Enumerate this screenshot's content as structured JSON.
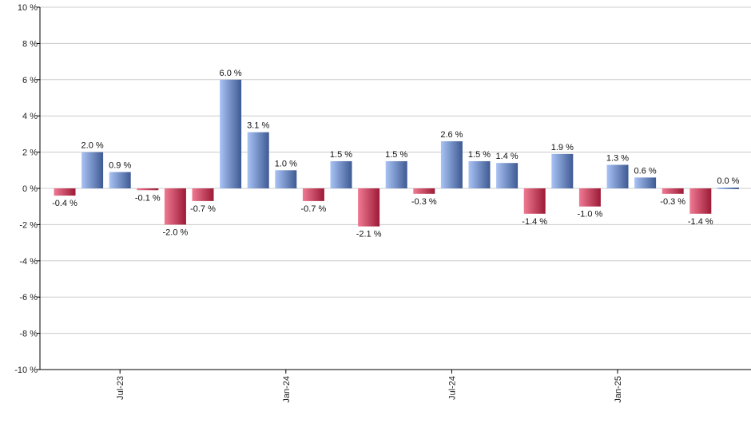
{
  "chart_data": {
    "type": "bar",
    "title": "",
    "xlabel": "",
    "ylabel": "",
    "ylim": [
      -10,
      10
    ],
    "y_ticks": [
      {
        "value": 10,
        "label": "10 %"
      },
      {
        "value": 8,
        "label": "8 %"
      },
      {
        "value": 6,
        "label": "6 %"
      },
      {
        "value": 4,
        "label": "4 %"
      },
      {
        "value": 2,
        "label": "2 %"
      },
      {
        "value": 0,
        "label": "0 %"
      },
      {
        "value": -2,
        "label": "-2 %"
      },
      {
        "value": -4,
        "label": "-4 %"
      },
      {
        "value": -6,
        "label": "-6 %"
      },
      {
        "value": -8,
        "label": "-8 %"
      },
      {
        "value": -10,
        "label": "-10 %"
      }
    ],
    "grid": true,
    "x_ticks": [
      {
        "index": 2,
        "label": "Jul-23"
      },
      {
        "index": 8,
        "label": "Jan-24"
      },
      {
        "index": 14,
        "label": "Jul-24"
      },
      {
        "index": 20,
        "label": "Jan-25"
      }
    ],
    "values": [
      -0.4,
      2.0,
      0.9,
      -0.1,
      -2.0,
      -0.7,
      6.0,
      3.1,
      1.0,
      -0.7,
      1.5,
      -2.1,
      1.5,
      -0.3,
      2.6,
      1.5,
      1.4,
      -1.4,
      1.9,
      -1.0,
      1.3,
      0.6,
      -0.3,
      -1.4,
      0.0
    ],
    "labels": [
      "-0.4 %",
      "2.0 %",
      "0.9 %",
      "-0.1 %",
      "-2.0 %",
      "-0.7 %",
      "6.0 %",
      "3.1 %",
      "1.0 %",
      "-0.7 %",
      "1.5 %",
      "-2.1 %",
      "1.5 %",
      "-0.3 %",
      "2.6 %",
      "1.5 %",
      "1.4 %",
      "-1.4 %",
      "1.9 %",
      "-1.0 %",
      "1.3 %",
      "0.6 %",
      "-0.3 %",
      "-1.4 %",
      "0.0 %"
    ],
    "colors": {
      "positive_light": "#a9c3f5",
      "positive_dark": "#3e5a93",
      "negative_light": "#f07a93",
      "negative_dark": "#9c1a36",
      "grid": "#cccccc",
      "axis": "#000000"
    }
  }
}
